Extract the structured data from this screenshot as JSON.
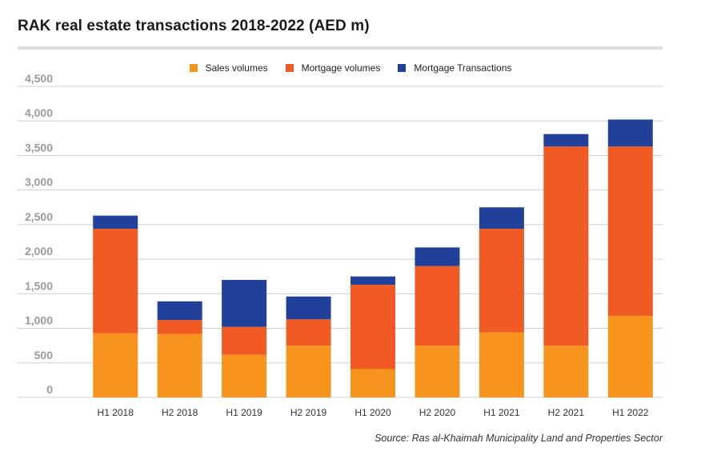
{
  "title": "RAK real estate transactions 2018-2022 (AED m)",
  "source": "Source: Ras al-Khaimah Municipality Land and Properties Sector",
  "colors": {
    "sales": "#f7941d",
    "mortgage_volumes": "#f15a22",
    "mortgage_transactions": "#21409a",
    "grid": "#cfcfcf",
    "ytick": "#9a9a9a"
  },
  "chart_data": {
    "type": "bar",
    "stacked": true,
    "title": "RAK real estate transactions 2018-2022 (AED m)",
    "xlabel": "",
    "ylabel": "",
    "ylim": [
      0,
      4500
    ],
    "yticks": [
      0,
      500,
      1000,
      1500,
      2000,
      2500,
      3000,
      3500,
      4000,
      4500
    ],
    "ytick_labels": [
      "0",
      "500",
      "1,000",
      "1,500",
      "2,000",
      "2,500",
      "3,000",
      "3,500",
      "4,000",
      "4,500"
    ],
    "grid": true,
    "legend_position": "top-center",
    "categories": [
      "H1 2018",
      "H2 2018",
      "H1 2019",
      "H2 2019",
      "H1 2020",
      "H2 2020",
      "H1 2021",
      "H2 2021",
      "H1 2022"
    ],
    "series": [
      {
        "name": "Sales volumes",
        "color": "#f7941d",
        "values": [
          930,
          920,
          620,
          750,
          410,
          750,
          940,
          750,
          1180
        ]
      },
      {
        "name": "Mortgage volumes",
        "color": "#f15a22",
        "values": [
          1510,
          200,
          400,
          380,
          1220,
          1150,
          1500,
          2880,
          2450
        ]
      },
      {
        "name": "Mortgage Transactions",
        "color": "#21409a",
        "values": [
          190,
          270,
          680,
          330,
          120,
          270,
          310,
          180,
          390
        ]
      }
    ]
  }
}
